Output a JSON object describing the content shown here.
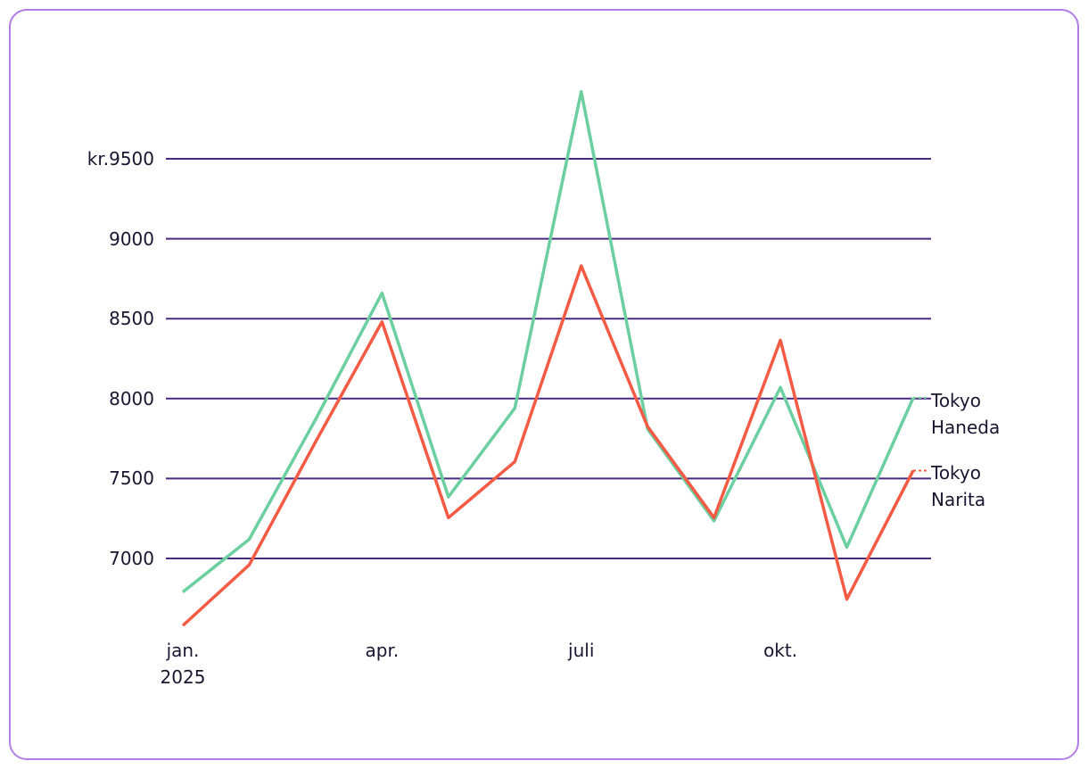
{
  "chart_data": {
    "type": "line",
    "categories": [
      "jan.\n2025",
      null,
      null,
      "apr.",
      null,
      null,
      "juli",
      null,
      null,
      "okt.",
      null,
      null
    ],
    "series": [
      {
        "name": "Tokyo Haneda",
        "color": "#6bcf9f",
        "values": [
          6790,
          7120,
          7870,
          8660,
          7385,
          7940,
          9920,
          7810,
          7235,
          8070,
          7070,
          8005
        ]
      },
      {
        "name": "Tokyo Narita",
        "color": "#f45a44",
        "values": [
          6580,
          6960,
          7730,
          8480,
          7255,
          7605,
          8830,
          7825,
          7255,
          8365,
          6745,
          7550
        ]
      }
    ],
    "ylim": [
      6500,
      10000
    ],
    "yticks": [
      7000,
      7500,
      8000,
      8500,
      9000,
      {
        "value": 9500,
        "label": "kr.9500"
      }
    ],
    "grid": true
  }
}
